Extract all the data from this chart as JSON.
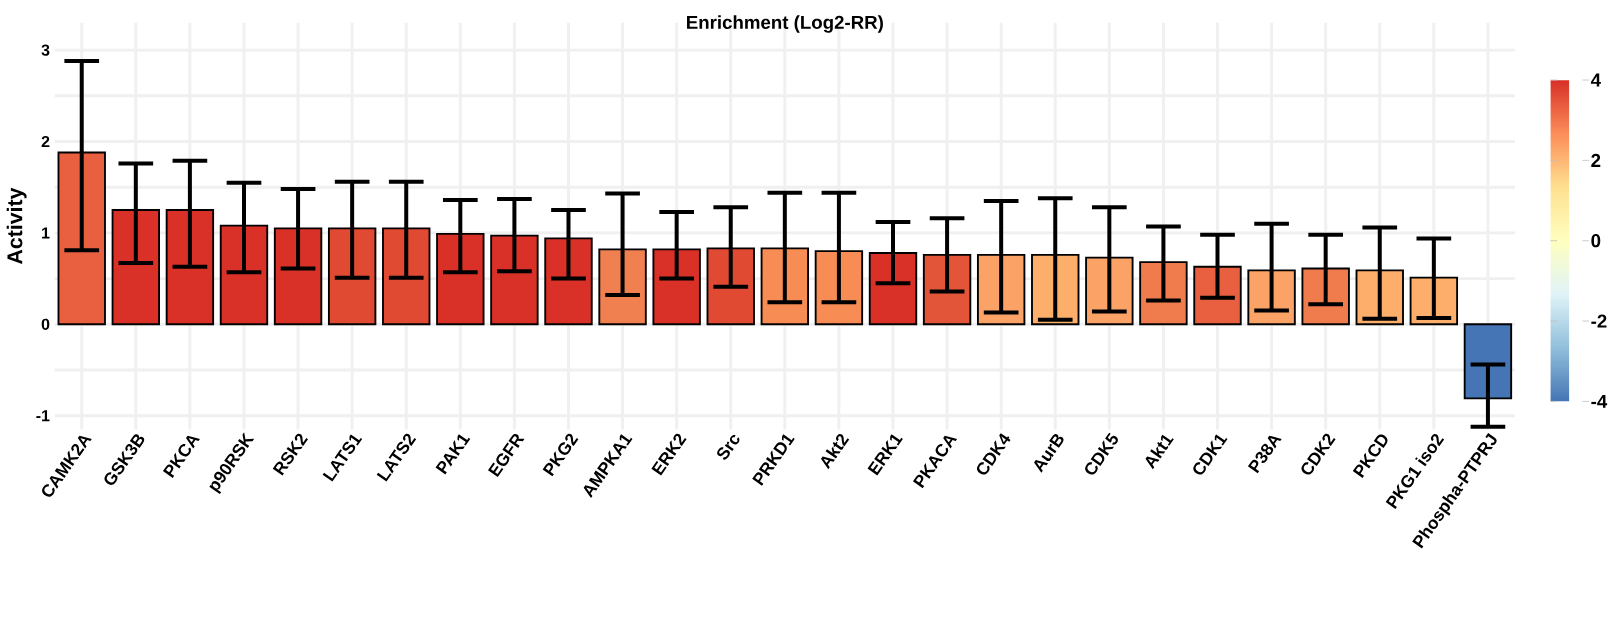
{
  "chart_data": {
    "type": "bar",
    "title": "Enrichment (Log2-RR)",
    "ylabel": "Activity",
    "categories": [
      "CAMK2A",
      "GSK3B",
      "PKCA",
      "p90RSK",
      "RSK2",
      "LATS1",
      "LATS2",
      "PAK1",
      "EGFR",
      "PKG2",
      "AMPKA1",
      "ERK2",
      "Src",
      "PRKD1",
      "Akt2",
      "ERK1",
      "PKACA",
      "CDK4",
      "AurB",
      "CDK5",
      "Akt1",
      "CDK1",
      "P38A",
      "CDK2",
      "PKCD",
      "PKG1 iso2",
      "Phospha-PTPRJ"
    ],
    "values": [
      1.88,
      1.25,
      1.25,
      1.08,
      1.05,
      1.05,
      1.05,
      0.99,
      0.97,
      0.94,
      0.82,
      0.82,
      0.83,
      0.83,
      0.8,
      0.78,
      0.76,
      0.76,
      0.76,
      0.73,
      0.68,
      0.63,
      0.59,
      0.61,
      0.59,
      0.51,
      -0.81
    ],
    "errors": [
      [
        0.81,
        2.88
      ],
      [
        0.67,
        1.76
      ],
      [
        0.63,
        1.79
      ],
      [
        0.57,
        1.55
      ],
      [
        0.61,
        1.48
      ],
      [
        0.51,
        1.56
      ],
      [
        0.51,
        1.56
      ],
      [
        0.57,
        1.36
      ],
      [
        0.58,
        1.37
      ],
      [
        0.5,
        1.25
      ],
      [
        0.32,
        1.43
      ],
      [
        0.5,
        1.23
      ],
      [
        0.41,
        1.28
      ],
      [
        0.24,
        1.44
      ],
      [
        0.24,
        1.44
      ],
      [
        0.45,
        1.12
      ],
      [
        0.36,
        1.16
      ],
      [
        0.13,
        1.35
      ],
      [
        0.05,
        1.38
      ],
      [
        0.14,
        1.28
      ],
      [
        0.26,
        1.07
      ],
      [
        0.29,
        0.98
      ],
      [
        0.15,
        1.1
      ],
      [
        0.22,
        0.98
      ],
      [
        0.06,
        1.06
      ],
      [
        0.07,
        0.94
      ],
      [
        -1.12,
        -0.44
      ]
    ],
    "colors": [
      "#e8603f",
      "#d93127",
      "#d93127",
      "#d93127",
      "#d93127",
      "#e04a33",
      "#e04a33",
      "#d93127",
      "#d93127",
      "#d93127",
      "#f08050",
      "#d93127",
      "#e04a33",
      "#f88c55",
      "#f88c55",
      "#d93127",
      "#e25538",
      "#fba266",
      "#fdae6b",
      "#fba266",
      "#f07c4e",
      "#e8603f",
      "#fba266",
      "#f07c4e",
      "#fdae6b",
      "#fdae6b",
      "#4575b4"
    ],
    "ylim": [
      -1.15,
      3.3
    ],
    "yticks": [
      -1,
      0,
      1,
      2,
      3
    ],
    "grid": true,
    "clim": [
      -4,
      4
    ],
    "cticks": [
      -4,
      -2,
      0,
      2,
      4
    ]
  }
}
